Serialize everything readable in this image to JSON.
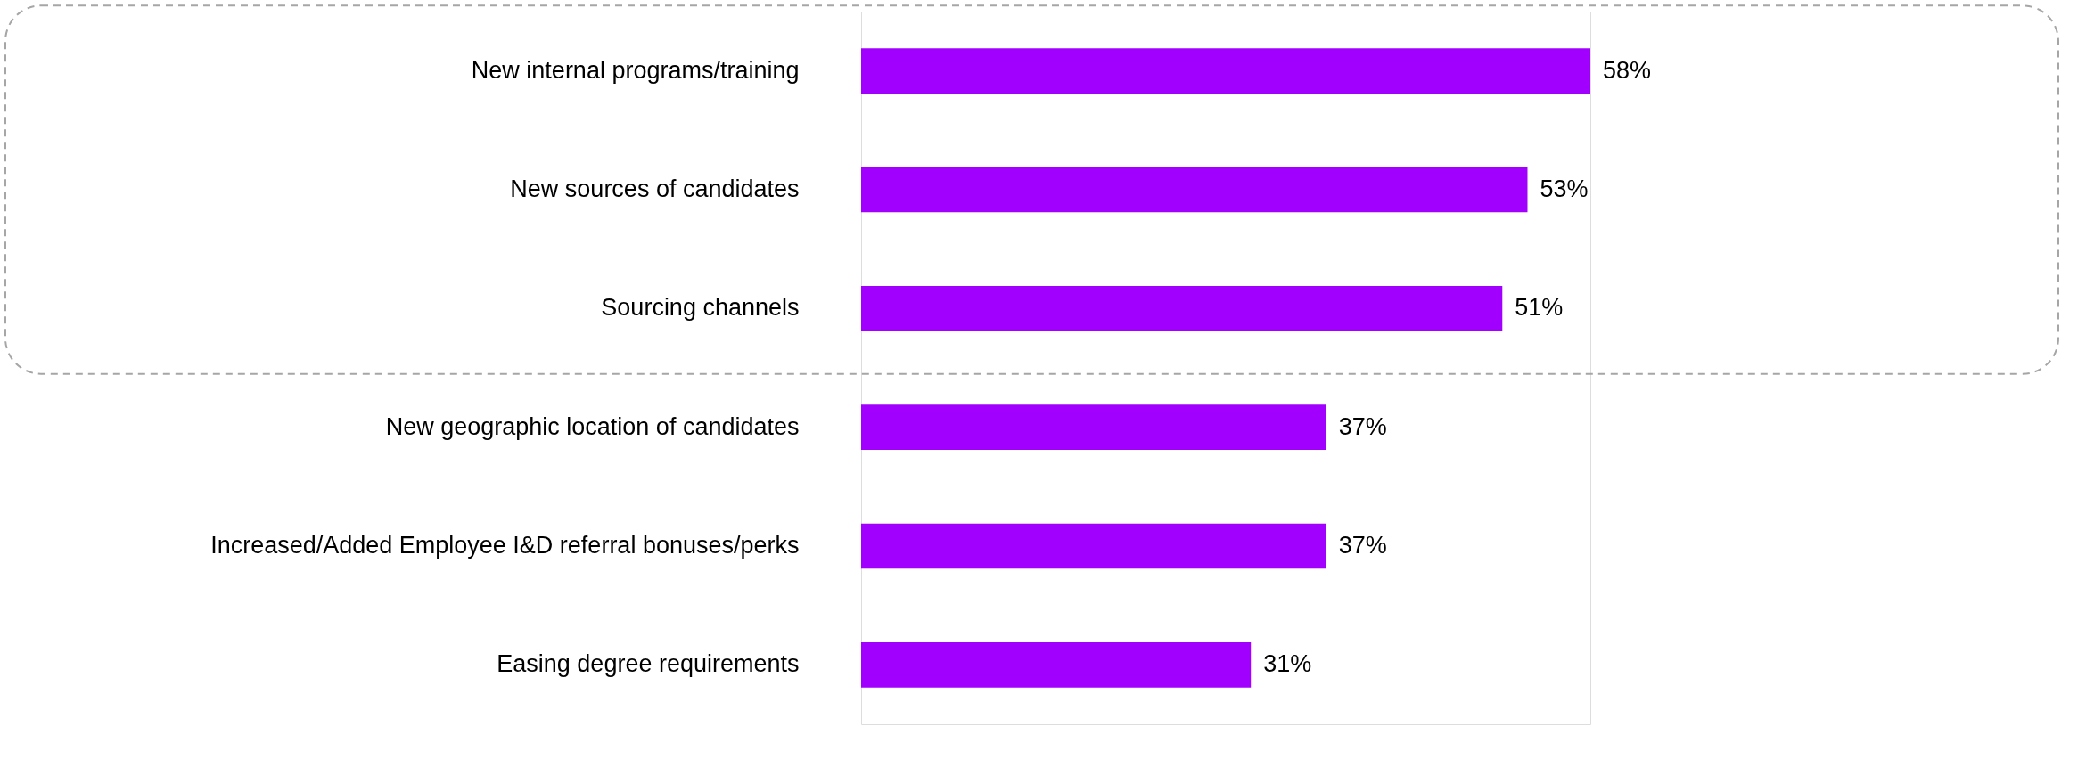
{
  "chart_data": {
    "type": "bar",
    "orientation": "horizontal",
    "data_labels": true,
    "categories": [
      "New internal programs/training",
      "New sources of candidates",
      "Sourcing channels",
      "New geographic location of candidates",
      "Increased/Added Employee I&D referral bonuses/perks",
      "Easing degree requirements"
    ],
    "values": [
      58,
      53,
      51,
      37,
      37,
      31
    ],
    "value_labels": [
      "58%",
      "53%",
      "51%",
      "37%",
      "37%",
      "31%"
    ],
    "color": "#a100ff"
  }
}
